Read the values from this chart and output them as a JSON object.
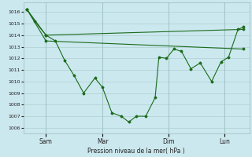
{
  "background_color": "#cce8ef",
  "grid_color": "#aacccc",
  "line_color": "#1a6b1a",
  "marker_color": "#1a6b1a",
  "xlabel": "Pression niveau de la mer( hPa )",
  "ylabel_values": [
    1006,
    1007,
    1008,
    1009,
    1010,
    1011,
    1012,
    1013,
    1014,
    1015,
    1016
  ],
  "ylim": [
    1005.5,
    1016.8
  ],
  "xlim": [
    -0.2,
    11.8
  ],
  "xtick_labels": [
    "Sam",
    "Mar",
    "Dim",
    "Lun"
  ],
  "xtick_positions": [
    1.0,
    4.0,
    7.5,
    10.5
  ],
  "series1_x": [
    0,
    1.0,
    11.5
  ],
  "series1_y": [
    1016.2,
    1014.0,
    1014.5
  ],
  "series2_x": [
    0,
    1.0,
    11.5
  ],
  "series2_y": [
    1016.2,
    1013.5,
    1012.8
  ],
  "series3_x": [
    0,
    0.4,
    1.0,
    1.5,
    2.0,
    2.5,
    3.0,
    3.6,
    4.0,
    4.5,
    5.0,
    5.4,
    5.8,
    6.3,
    6.8,
    7.0,
    7.4,
    7.8,
    8.2,
    8.7,
    9.2,
    9.8,
    10.3,
    10.7,
    11.2,
    11.5
  ],
  "series3_y": [
    1016.2,
    1015.2,
    1014.0,
    1013.5,
    1011.8,
    1010.5,
    1009.0,
    1010.3,
    1009.5,
    1007.3,
    1007.0,
    1006.5,
    1007.0,
    1007.0,
    1008.6,
    1012.1,
    1012.0,
    1012.8,
    1012.6,
    1011.1,
    1011.6,
    1010.0,
    1011.7,
    1012.1,
    1014.5,
    1014.7
  ]
}
